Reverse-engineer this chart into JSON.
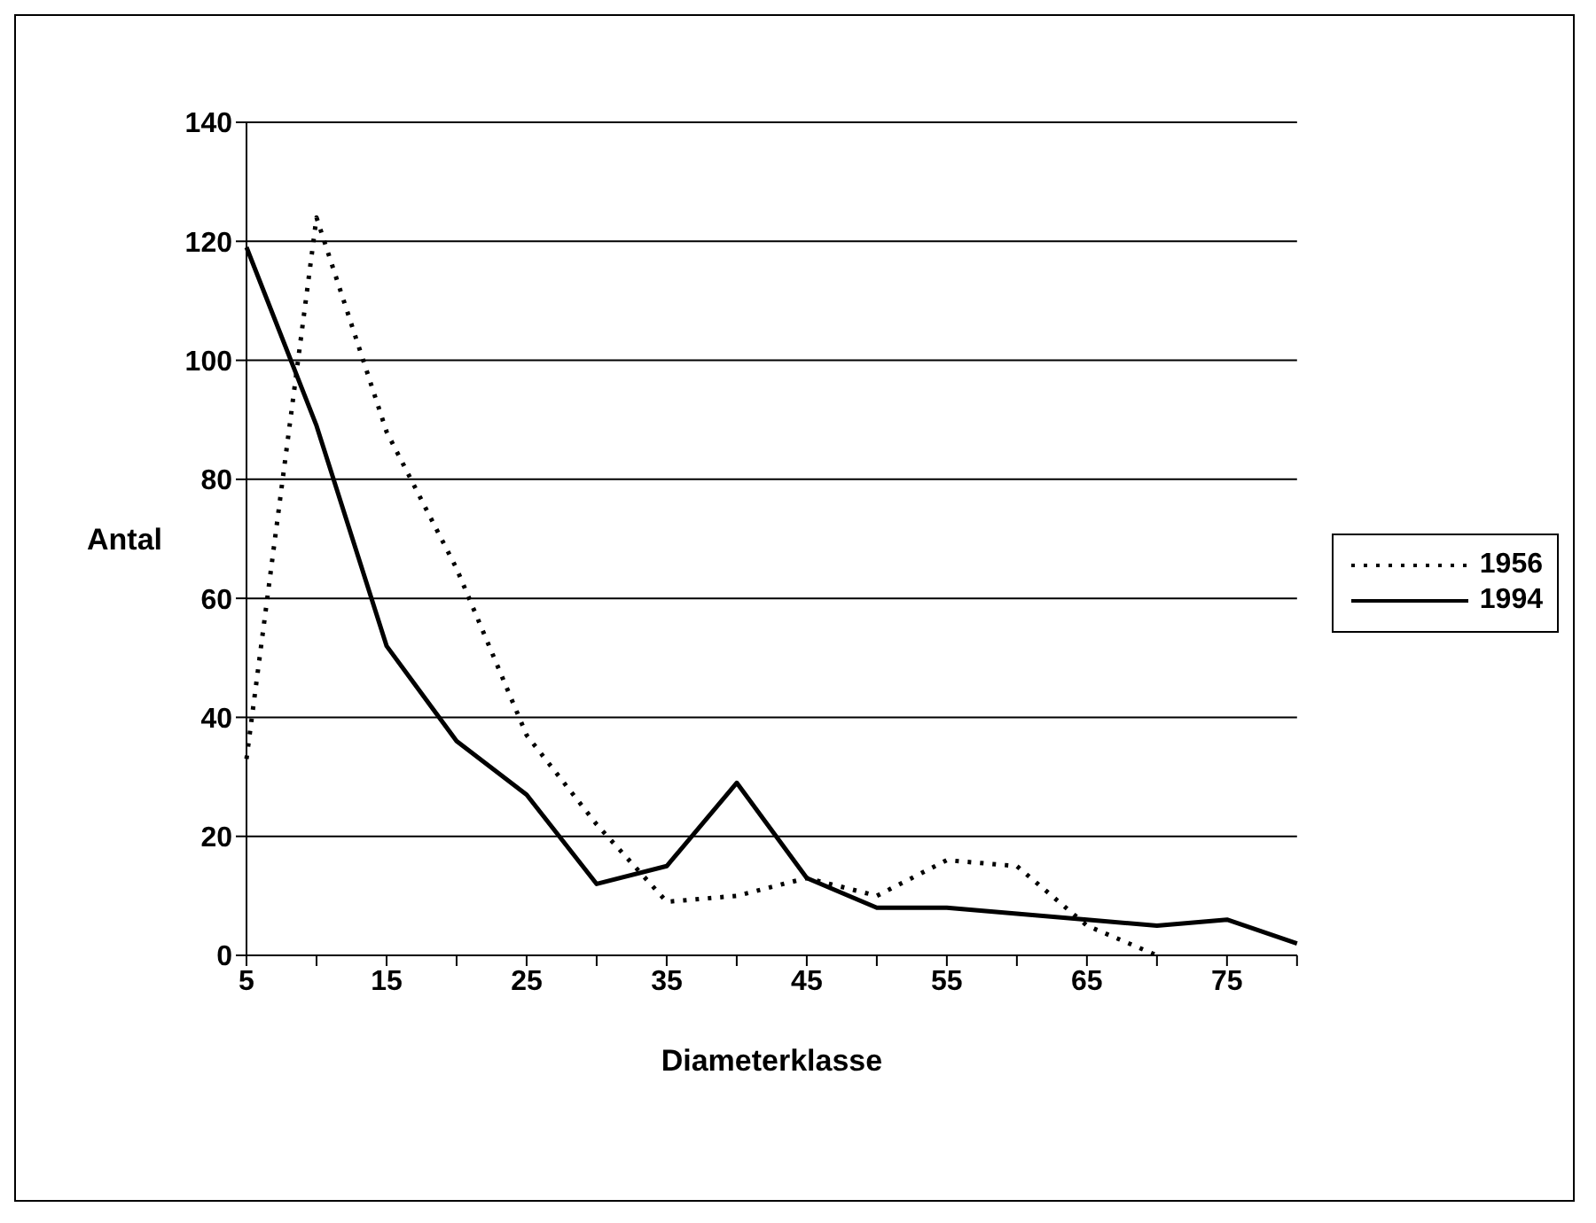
{
  "chart_data": {
    "type": "line",
    "xlabel": "Diameterklasse",
    "ylabel": "Antal",
    "categories": [
      "5",
      null,
      "15",
      null,
      "25",
      null,
      "35",
      null,
      "45",
      null,
      "55",
      null,
      "65",
      null,
      "75",
      null
    ],
    "series": [
      {
        "name": "1956",
        "color": "#000000",
        "line_style": "dotted",
        "values": [
          33,
          124,
          88,
          65,
          37,
          22,
          9,
          10,
          13,
          10,
          16,
          15,
          5,
          0,
          null,
          null
        ]
      },
      {
        "name": "1994",
        "color": "#000000",
        "line_style": "solid",
        "values": [
          119,
          89,
          52,
          36,
          27,
          12,
          15,
          29,
          13,
          8,
          8,
          7,
          6,
          5,
          6,
          2
        ]
      }
    ],
    "ylim": [
      0,
      140
    ],
    "yticks": [
      0,
      20,
      40,
      60,
      80,
      100,
      120,
      140
    ],
    "grid": "y",
    "legend": "right",
    "marker": "none"
  }
}
